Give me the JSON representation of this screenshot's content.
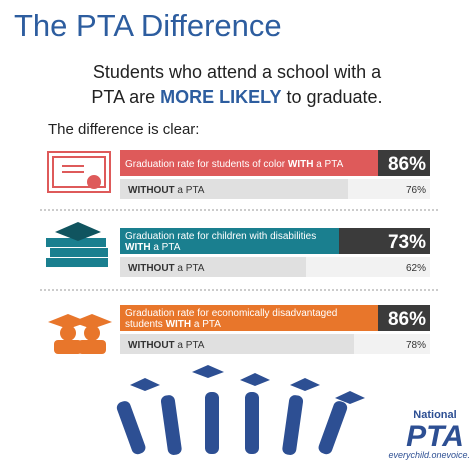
{
  "title": "The PTA Difference",
  "subtitle": {
    "line1": "Students who attend a school with a",
    "line2": [
      {
        "text": "PTA are "
      },
      {
        "text": "MORE LIKELY",
        "bold": true
      },
      {
        "text": " to graduate."
      }
    ]
  },
  "lead": "The difference is clear:",
  "rows": [
    {
      "color": "#de5a5a",
      "values": [
        86,
        76
      ],
      "value_labels": [
        "86%",
        "76%"
      ],
      "with_label": [
        [
          {
            "text": "Graduation rate for students of color "
          },
          {
            "text": "WITH",
            "bold": true
          },
          {
            "text": " a PTA"
          }
        ]
      ],
      "without_label": [
        {
          "text": "WITHOUT",
          "bold": true
        },
        {
          "text": " a PTA"
        }
      ]
    },
    {
      "color": "#1a7f8f",
      "values": [
        73,
        62
      ],
      "value_labels": [
        "73%",
        "62%"
      ],
      "with_label": [
        [
          {
            "text": "Graduation rate for children with disabilities"
          }
        ],
        [
          {
            "text": "WITH",
            "bold": true
          },
          {
            "text": " a PTA"
          }
        ]
      ],
      "without_label": [
        {
          "text": "WITHOUT",
          "bold": true
        },
        {
          "text": " a PTA"
        }
      ]
    },
    {
      "color": "#e8762b",
      "values": [
        86,
        78
      ],
      "value_labels": [
        "86%",
        "78%"
      ],
      "with_label": [
        [
          {
            "text": "Graduation rate for economically disadvantaged"
          }
        ],
        [
          {
            "text": "students "
          },
          {
            "text": "WITH",
            "bold": true
          },
          {
            "text": " a PTA"
          }
        ]
      ],
      "without_label": [
        {
          "text": "WITHOUT",
          "bold": true
        },
        {
          "text": " a PTA"
        }
      ]
    }
  ],
  "logo": {
    "top": "National",
    "brand": "PTA",
    "tagline": "everychild.onevoice."
  }
}
